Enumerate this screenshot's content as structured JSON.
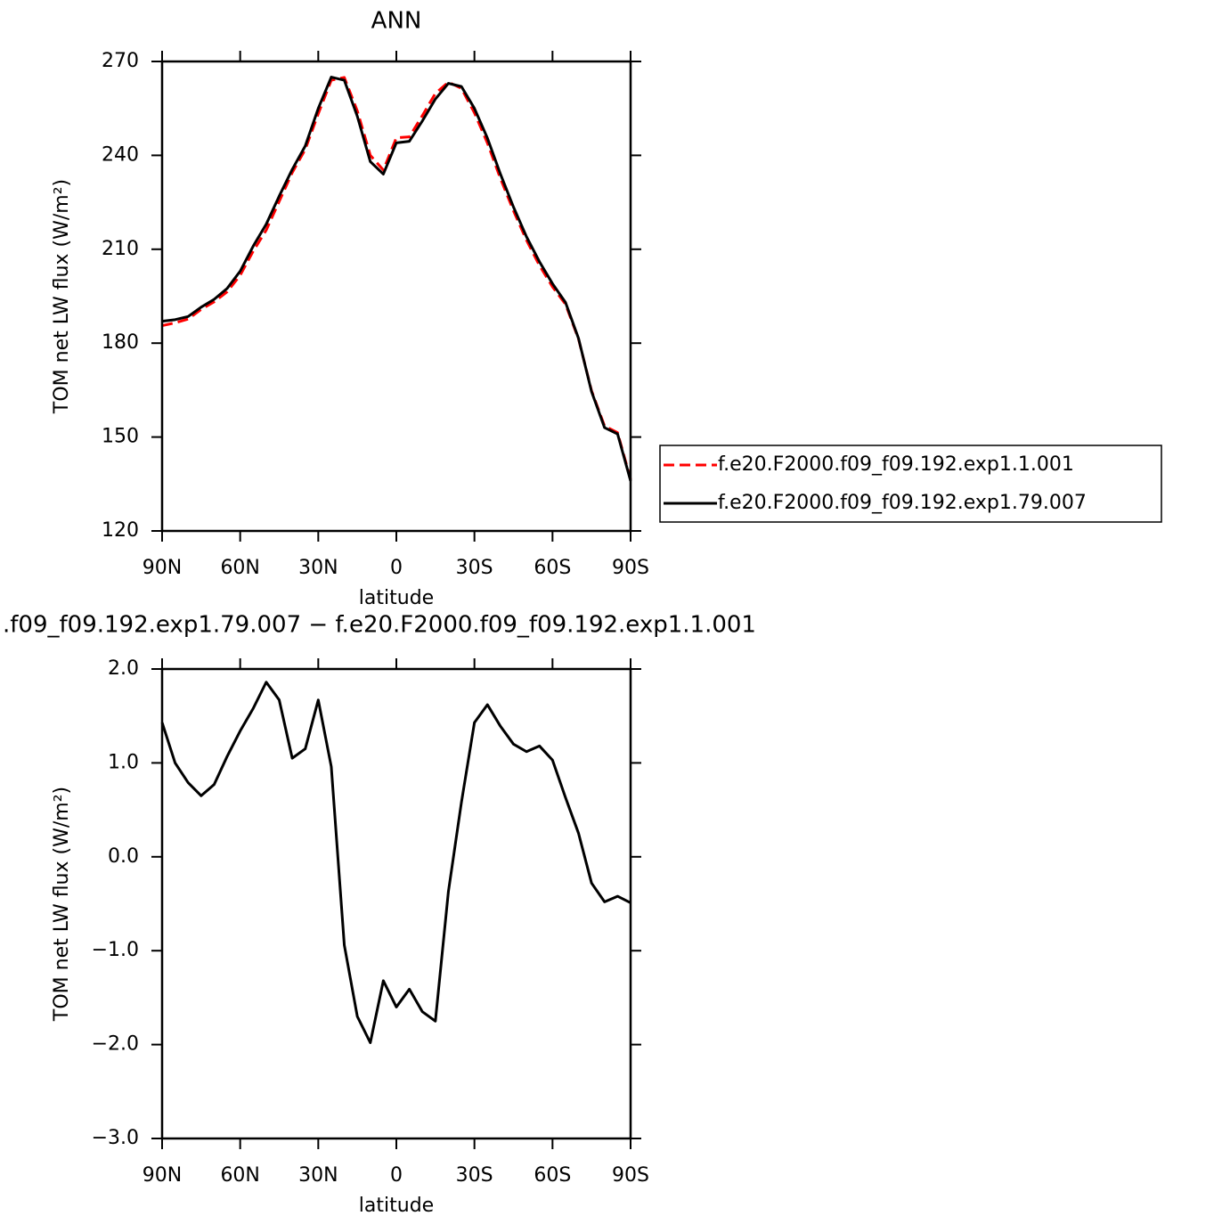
{
  "chart_data": [
    {
      "type": "line",
      "title": "ANN",
      "xlabel": "latitude",
      "ylabel": "TOM net LW flux (W/m²)",
      "x": [
        90,
        85,
        80,
        75,
        70,
        65,
        60,
        55,
        50,
        45,
        40,
        35,
        30,
        25,
        20,
        15,
        10,
        5,
        0,
        -5,
        -10,
        -15,
        -20,
        -25,
        -30,
        -35,
        -40,
        -45,
        -50,
        -55,
        -60,
        -65,
        -70,
        -75,
        -80,
        -85,
        -90
      ],
      "xlim": [
        90,
        -90
      ],
      "xticks": [
        {
          "value": 90,
          "label": "90N"
        },
        {
          "value": 60,
          "label": "60N"
        },
        {
          "value": 30,
          "label": "30N"
        },
        0,
        {
          "value": -30,
          "label": "30S"
        },
        {
          "value": -60,
          "label": "60S"
        },
        {
          "value": -90,
          "label": "90S"
        }
      ],
      "ylim": [
        120,
        270
      ],
      "yticks": [
        120,
        150,
        180,
        210,
        240,
        270
      ],
      "legend": "right",
      "series": [
        {
          "name": "f.e20.F2000.f09_f09.192.exp1.1.001",
          "color": "#ff0000",
          "dash": "dashed",
          "values": [
            185.6,
            186.5,
            187.7,
            190.8,
            193.2,
            196.4,
            201.7,
            209.4,
            216.1,
            225.3,
            234.5,
            241.9,
            253.3,
            264,
            264.9,
            254.2,
            240,
            235.3,
            245.6,
            245.9,
            252.7,
            259.8,
            263.4,
            261.4,
            253.6,
            243.9,
            232.6,
            222.3,
            212.9,
            204.8,
            198,
            192.4,
            181.3,
            164.8,
            153.5,
            151.4,
            136.5
          ]
        },
        {
          "name": "f.e20.F2000.f09_f09.192.exp1.79.007",
          "color": "#000000",
          "dash": "solid",
          "values": [
            187,
            187.5,
            188.5,
            191.5,
            194,
            197.5,
            203,
            211,
            218,
            227,
            235.5,
            243,
            255,
            265,
            264,
            252.5,
            238,
            234,
            244,
            244.5,
            251,
            258,
            263,
            262,
            255,
            245.5,
            234,
            223.5,
            214,
            206,
            199,
            193,
            181.5,
            164.5,
            153,
            151,
            136
          ]
        }
      ]
    },
    {
      "type": "line",
      "title": ".f09_f09.192.exp1.79.007 − f.e20.F2000.f09_f09.192.exp1.1.001",
      "xlabel": "latitude",
      "ylabel": "TOM net LW flux (W/m²)",
      "x": [
        90,
        85,
        80,
        75,
        70,
        65,
        60,
        55,
        50,
        45,
        40,
        35,
        30,
        25,
        20,
        15,
        10,
        5,
        0,
        -5,
        -10,
        -15,
        -20,
        -25,
        -30,
        -35,
        -40,
        -45,
        -50,
        -55,
        -60,
        -65,
        -70,
        -75,
        -80,
        -85,
        -90
      ],
      "xlim": [
        90,
        -90
      ],
      "xticks": [
        {
          "value": 90,
          "label": "90N"
        },
        {
          "value": 60,
          "label": "60N"
        },
        {
          "value": 30,
          "label": "30N"
        },
        0,
        {
          "value": -30,
          "label": "30S"
        },
        {
          "value": -60,
          "label": "60S"
        },
        {
          "value": -90,
          "label": "90S"
        }
      ],
      "ylim": [
        -3,
        2
      ],
      "yticks": [
        {
          "value": -3,
          "label": "−3.0"
        },
        {
          "value": -2,
          "label": "−2.0"
        },
        {
          "value": -1,
          "label": "−1.0"
        },
        {
          "value": 0,
          "label": "0.0"
        },
        {
          "value": 1,
          "label": "1.0"
        },
        {
          "value": 2,
          "label": "2.0"
        }
      ],
      "series": [
        {
          "color": "#000000",
          "dash": "solid",
          "values": [
            1.43,
            1.0,
            0.79,
            0.65,
            0.77,
            1.07,
            1.34,
            1.58,
            1.86,
            1.67,
            1.05,
            1.15,
            1.67,
            0.96,
            -0.94,
            -1.7,
            -1.98,
            -1.32,
            -1.6,
            -1.41,
            -1.65,
            -1.75,
            -0.37,
            0.58,
            1.43,
            1.62,
            1.39,
            1.2,
            1.12,
            1.18,
            1.03,
            0.63,
            0.25,
            -0.28,
            -0.48,
            -0.42,
            -0.49
          ]
        }
      ]
    }
  ]
}
